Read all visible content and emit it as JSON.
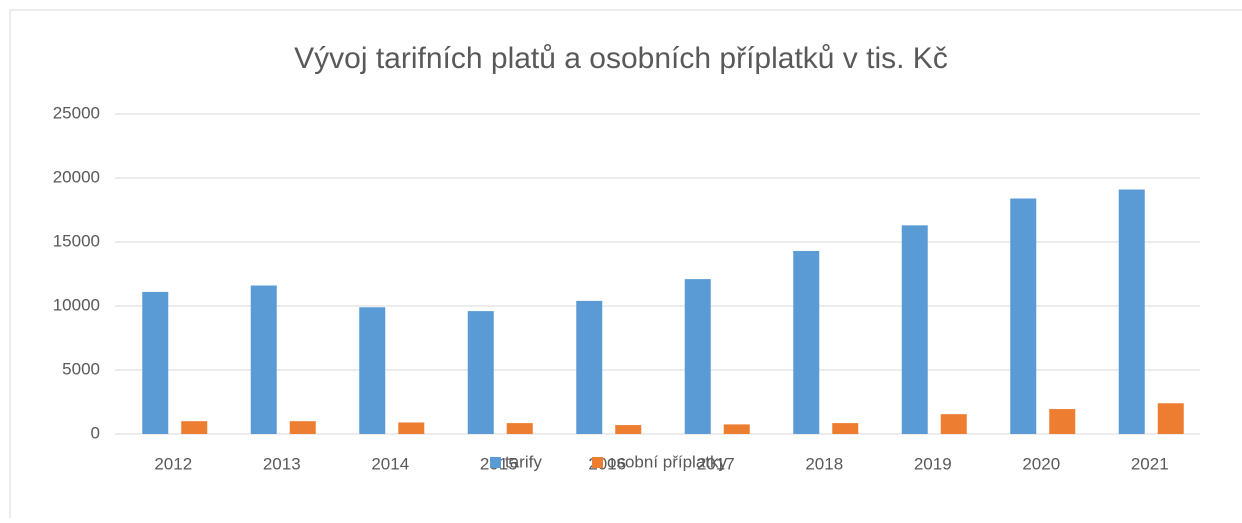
{
  "chart_data": {
    "type": "bar",
    "title": "Vývoj tarifních platů a osobních příplatků v tis. Kč",
    "categories": [
      "2012",
      "2013",
      "2014",
      "2015",
      "2016",
      "2017",
      "2018",
      "2019",
      "2020",
      "2021"
    ],
    "series": [
      {
        "name": "tarify",
        "color": "#5b9bd5",
        "values": [
          11100,
          11600,
          9900,
          9600,
          10400,
          12100,
          14300,
          16300,
          18400,
          19100
        ]
      },
      {
        "name": "osobní příplatky",
        "color": "#ed7d31",
        "values": [
          1000,
          1000,
          900,
          850,
          700,
          750,
          850,
          1550,
          1950,
          2400
        ]
      }
    ],
    "ylim": [
      0,
      25000
    ],
    "yticks": [
      0,
      5000,
      10000,
      15000,
      20000,
      25000
    ],
    "grid": true,
    "legend": "bottom"
  }
}
